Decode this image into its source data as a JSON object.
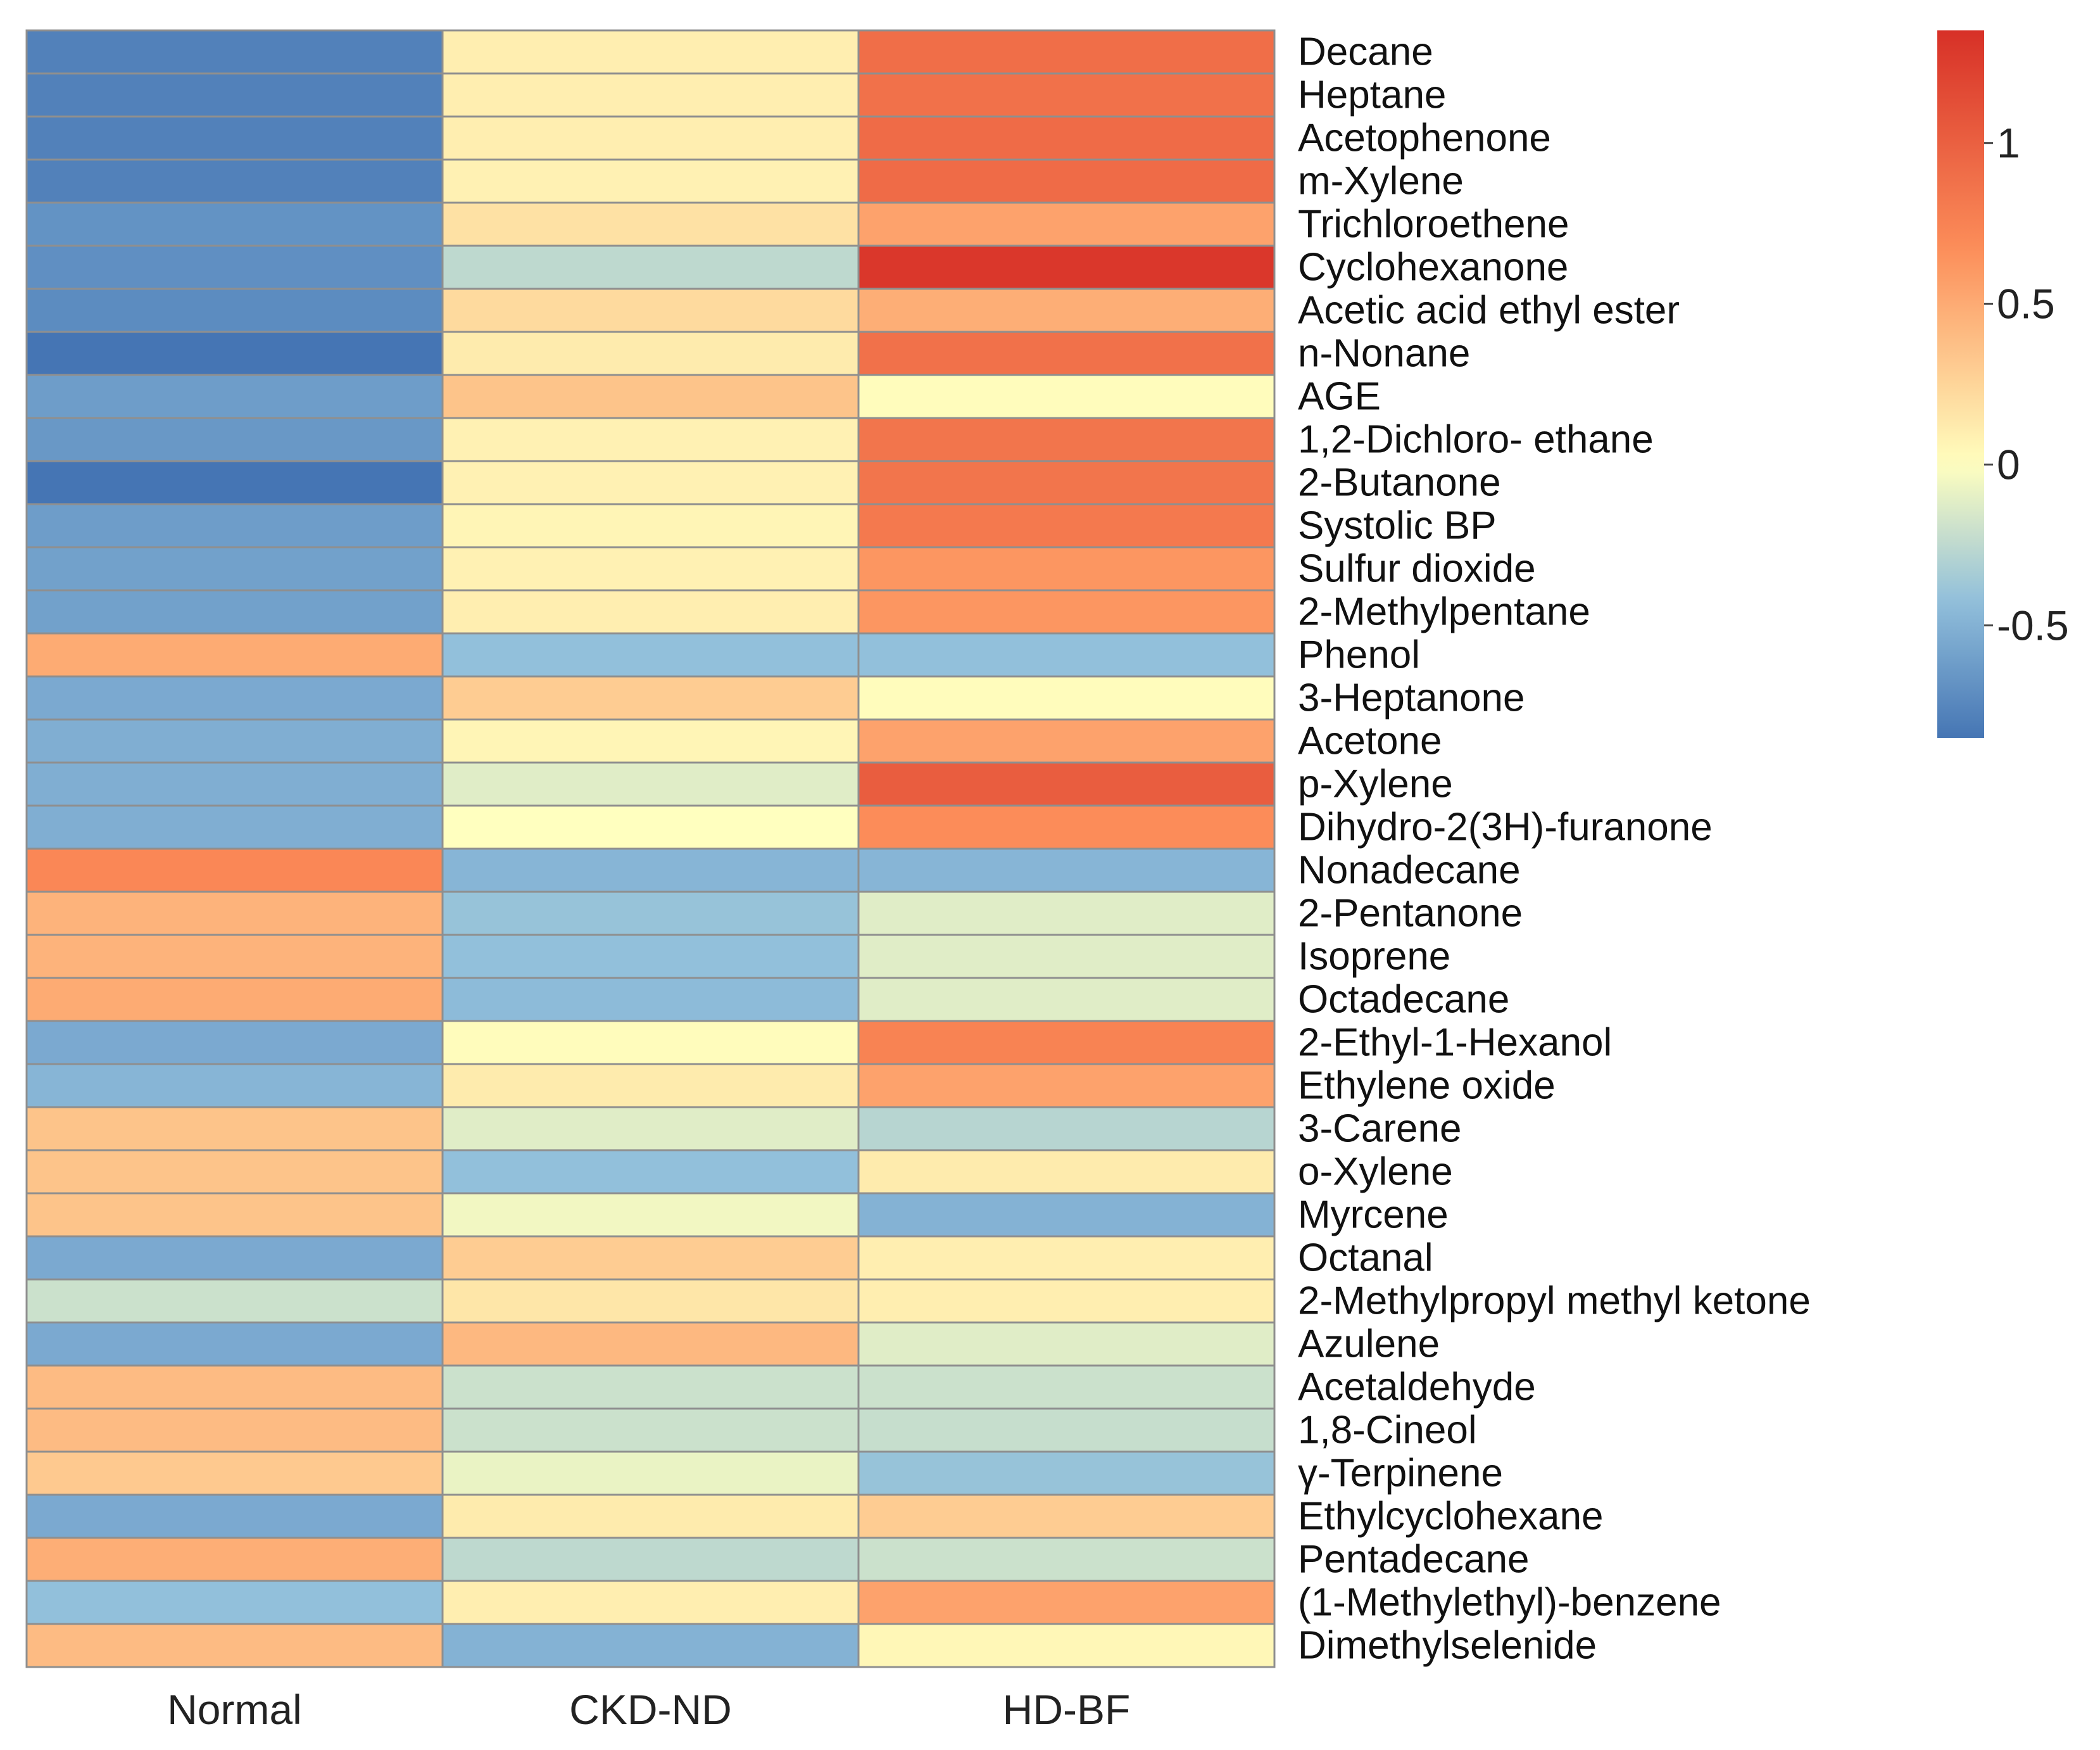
{
  "chart_data": {
    "type": "heatmap",
    "columns": [
      "Normal",
      "CKD-ND",
      "HD-BF"
    ],
    "rows": [
      "Decane",
      "Heptane",
      "Acetophenone",
      "m-Xylene",
      "Trichloroethene",
      "Cyclohexanone",
      "Acetic acid ethyl ester",
      "n-Nonane",
      "AGE",
      "1,2-Dichloro- ethane",
      "2-Butanone",
      "Systolic BP",
      "Sulfur dioxide",
      "2-Methylpentane",
      "Phenol",
      "3-Heptanone",
      "Acetone",
      "p-Xylene",
      "Dihydro-2(3H)-furanone",
      "Nonadecane",
      "2-Pentanone",
      "Isoprene",
      "Octadecane",
      "2-Ethyl-1-Hexanol",
      "Ethylene oxide",
      "3-Carene",
      "o-Xylene",
      "Myrcene",
      "Octanal",
      "2-Methylpropyl methyl ketone",
      "Azulene",
      "Acetaldehyde",
      "1,8-Cineol",
      "γ-Terpinene",
      "Ethylcyclohexane",
      "Pentadecane",
      "(1-Methylethyl)-benzene",
      "Dimethylselenide"
    ],
    "values": [
      [
        -0.78,
        0.1,
        0.9
      ],
      [
        -0.78,
        0.1,
        0.88
      ],
      [
        -0.78,
        0.1,
        0.92
      ],
      [
        -0.78,
        0.08,
        0.92
      ],
      [
        -0.68,
        0.18,
        0.55
      ],
      [
        -0.7,
        -0.25,
        1.3
      ],
      [
        -0.72,
        0.22,
        0.48
      ],
      [
        -0.85,
        0.12,
        0.88
      ],
      [
        -0.62,
        0.35,
        0.02
      ],
      [
        -0.65,
        0.08,
        0.85
      ],
      [
        -0.85,
        0.08,
        0.85
      ],
      [
        -0.62,
        0.06,
        0.82
      ],
      [
        -0.6,
        0.08,
        0.62
      ],
      [
        -0.6,
        0.1,
        0.62
      ],
      [
        0.5,
        -0.42,
        -0.42
      ],
      [
        -0.55,
        0.3,
        0.02
      ],
      [
        -0.52,
        0.06,
        0.55
      ],
      [
        -0.52,
        -0.12,
        1.02
      ],
      [
        -0.52,
        0.0,
        0.68
      ],
      [
        0.72,
        -0.48,
        -0.48
      ],
      [
        0.45,
        -0.4,
        -0.12
      ],
      [
        0.45,
        -0.42,
        -0.12
      ],
      [
        0.5,
        -0.45,
        -0.12
      ],
      [
        -0.55,
        0.02,
        0.75
      ],
      [
        -0.48,
        0.12,
        0.55
      ],
      [
        0.35,
        -0.12,
        -0.28
      ],
      [
        0.35,
        -0.42,
        0.12
      ],
      [
        0.35,
        -0.05,
        -0.5
      ],
      [
        -0.55,
        0.3,
        0.1
      ],
      [
        -0.2,
        0.15,
        0.1
      ],
      [
        -0.55,
        0.42,
        -0.12
      ],
      [
        0.4,
        -0.2,
        -0.2
      ],
      [
        0.4,
        -0.2,
        -0.22
      ],
      [
        0.32,
        -0.08,
        -0.4
      ],
      [
        -0.55,
        0.12,
        0.3
      ],
      [
        0.48,
        -0.25,
        -0.2
      ],
      [
        -0.42,
        0.1,
        0.55
      ],
      [
        0.4,
        -0.5,
        0.05
      ]
    ],
    "colorbar": {
      "range": [
        -0.85,
        1.35
      ],
      "ticks": [
        -0.5,
        0,
        0.5,
        1
      ],
      "tick_labels": [
        "-0.5",
        "0",
        "0.5",
        "1"
      ],
      "low_color": "#4575b4",
      "mid_color": "#ffffbf",
      "high_color": "#d73027"
    },
    "title": "",
    "xlabel": "",
    "ylabel": "",
    "legend_position": "top-right"
  }
}
